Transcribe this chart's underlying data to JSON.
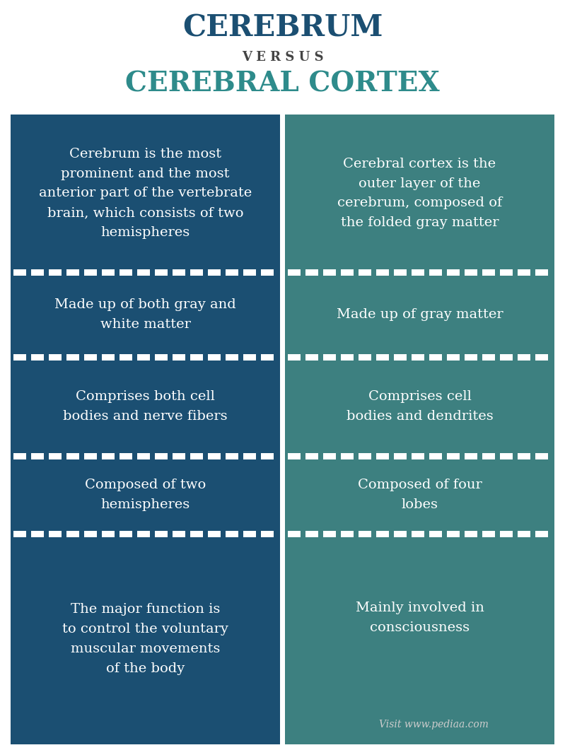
{
  "title1": "CEREBRUM",
  "versus": "V E R S U S",
  "title2": "CEREBRAL CORTEX",
  "title1_color": "#1b4f72",
  "title2_color": "#2e8b8b",
  "versus_color": "#444444",
  "left_bg": "#1b4f72",
  "right_bg": "#3d8080",
  "text_color": "#ffffff",
  "page_bg": "#ffffff",
  "left_items": [
    "Cerebrum is the most\nprominent and the most\nanterior part of the vertebrate\nbrain, which consists of two\nhemispheres",
    "Made up of both gray and\nwhite matter",
    "Comprises both cell\nbodies and nerve fibers",
    "Composed of two\nhemispheres",
    "The major function is\nto control the voluntary\nmuscular movements\nof the body"
  ],
  "right_items": [
    "Cerebral cortex is the\nouter layer of the\ncerebrum, composed of\nthe folded gray matter",
    "Made up of gray matter",
    "Comprises cell\nbodies and dendrites",
    "Composed of four\nlobes",
    "Mainly involved in\nconsciousness"
  ],
  "watermark": "Visit www.pediaa.com",
  "divider_color": "#ffffff"
}
